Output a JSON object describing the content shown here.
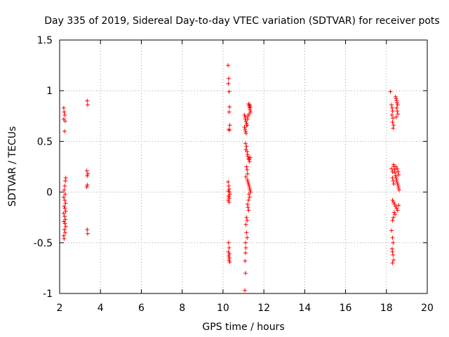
{
  "chart_data": {
    "type": "scatter",
    "title": "Day 335 of 2019, Sidereal Day-to-day VTEC variation (SDTVAR) for receiver pots",
    "xlabel": "GPS time / hours",
    "ylabel": "SDTVAR / TECUs",
    "xlim": [
      2,
      20
    ],
    "ylim": [
      -1,
      1.5
    ],
    "xticks": [
      2,
      4,
      6,
      8,
      10,
      12,
      14,
      16,
      18,
      20
    ],
    "yticks": [
      -1,
      -0.5,
      0,
      0.5,
      1,
      1.5
    ],
    "xtick_labels": [
      "2",
      "4",
      "6",
      "8",
      "10",
      "12",
      "14",
      "16",
      "18",
      "20"
    ],
    "ytick_labels": [
      "-1",
      "-0.5",
      "0",
      "0.5",
      "1",
      "1.5"
    ],
    "grid": true,
    "marker": "+",
    "color": "#ff0000",
    "series": [
      {
        "name": "SDTVAR",
        "points": [
          [
            2.2,
            0.83
          ],
          [
            2.22,
            0.79
          ],
          [
            2.25,
            0.76
          ],
          [
            2.2,
            0.72
          ],
          [
            2.27,
            0.7
          ],
          [
            2.24,
            0.6
          ],
          [
            2.3,
            0.14
          ],
          [
            2.28,
            0.11
          ],
          [
            2.25,
            0.06
          ],
          [
            2.22,
            0.02
          ],
          [
            2.27,
            -0.02
          ],
          [
            2.2,
            -0.05
          ],
          [
            2.25,
            -0.08
          ],
          [
            2.29,
            -0.11
          ],
          [
            2.22,
            -0.14
          ],
          [
            2.26,
            -0.16
          ],
          [
            2.3,
            -0.19
          ],
          [
            2.2,
            -0.21
          ],
          [
            2.24,
            -0.24
          ],
          [
            2.28,
            -0.27
          ],
          [
            2.21,
            -0.29
          ],
          [
            2.26,
            -0.31
          ],
          [
            2.3,
            -0.34
          ],
          [
            2.23,
            -0.37
          ],
          [
            2.27,
            -0.4
          ],
          [
            2.2,
            -0.43
          ],
          [
            2.22,
            -0.46
          ],
          [
            3.35,
            0.9
          ],
          [
            3.37,
            0.86
          ],
          [
            3.33,
            0.21
          ],
          [
            3.38,
            0.18
          ],
          [
            3.35,
            0.16
          ],
          [
            3.36,
            0.07
          ],
          [
            3.33,
            0.05
          ],
          [
            3.35,
            -0.37
          ],
          [
            3.37,
            -0.41
          ],
          [
            10.25,
            1.25
          ],
          [
            10.28,
            1.12
          ],
          [
            10.26,
            1.07
          ],
          [
            10.3,
            0.99
          ],
          [
            10.32,
            0.84
          ],
          [
            10.3,
            0.79
          ],
          [
            10.33,
            0.66
          ],
          [
            10.29,
            0.62
          ],
          [
            10.31,
            0.61
          ],
          [
            10.25,
            0.1
          ],
          [
            10.28,
            0.06
          ],
          [
            10.3,
            0.03
          ],
          [
            10.26,
            0.01
          ],
          [
            10.33,
            -0.02
          ],
          [
            10.27,
            -0.04
          ],
          [
            10.31,
            -0.06
          ],
          [
            10.25,
            -0.08
          ],
          [
            10.3,
            -0.1
          ],
          [
            10.28,
            -0.04
          ],
          [
            10.32,
            0.0
          ],
          [
            10.27,
            -0.5
          ],
          [
            10.3,
            -0.55
          ],
          [
            10.26,
            -0.59
          ],
          [
            10.32,
            -0.61
          ],
          [
            10.28,
            -0.63
          ],
          [
            10.31,
            -0.65
          ],
          [
            10.29,
            -0.67
          ],
          [
            10.33,
            -0.69
          ],
          [
            11.05,
            0.76
          ],
          [
            11.08,
            0.74
          ],
          [
            11.1,
            0.72
          ],
          [
            11.12,
            0.7
          ],
          [
            11.15,
            0.68
          ],
          [
            11.18,
            0.66
          ],
          [
            11.05,
            0.64
          ],
          [
            11.08,
            0.62
          ],
          [
            11.1,
            0.6
          ],
          [
            11.13,
            0.58
          ],
          [
            11.15,
            0.66
          ],
          [
            11.2,
            0.72
          ],
          [
            11.22,
            0.75
          ],
          [
            11.25,
            0.87
          ],
          [
            11.27,
            0.85
          ],
          [
            11.3,
            0.83
          ],
          [
            11.32,
            0.81
          ],
          [
            11.35,
            0.79
          ],
          [
            11.28,
            0.77
          ],
          [
            11.31,
            0.86
          ],
          [
            11.34,
            0.84
          ],
          [
            11.1,
            0.48
          ],
          [
            11.15,
            0.45
          ],
          [
            11.12,
            0.42
          ],
          [
            11.18,
            0.4
          ],
          [
            11.2,
            0.37
          ],
          [
            11.22,
            0.35
          ],
          [
            11.25,
            0.33
          ],
          [
            11.28,
            0.32
          ],
          [
            11.3,
            0.3
          ],
          [
            11.33,
            0.34
          ],
          [
            11.15,
            0.25
          ],
          [
            11.18,
            0.22
          ],
          [
            11.2,
            0.18
          ],
          [
            11.12,
            0.15
          ],
          [
            11.2,
            0.12
          ],
          [
            11.22,
            0.1
          ],
          [
            11.25,
            0.08
          ],
          [
            11.28,
            0.06
          ],
          [
            11.3,
            0.04
          ],
          [
            11.32,
            0.02
          ],
          [
            11.35,
            0.0
          ],
          [
            11.27,
            -0.02
          ],
          [
            11.3,
            -0.05
          ],
          [
            11.25,
            -0.08
          ],
          [
            11.2,
            -0.12
          ],
          [
            11.22,
            -0.15
          ],
          [
            11.25,
            -0.18
          ],
          [
            11.15,
            -0.25
          ],
          [
            11.18,
            -0.28
          ],
          [
            11.12,
            -0.32
          ],
          [
            11.15,
            -0.4
          ],
          [
            11.18,
            -0.45
          ],
          [
            11.1,
            -0.5
          ],
          [
            11.12,
            -0.55
          ],
          [
            11.1,
            -0.6
          ],
          [
            11.08,
            -0.68
          ],
          [
            11.1,
            -0.8
          ],
          [
            11.07,
            -0.97
          ],
          [
            18.2,
            0.99
          ],
          [
            18.25,
            0.86
          ],
          [
            18.28,
            0.83
          ],
          [
            18.3,
            0.8
          ],
          [
            18.27,
            0.76
          ],
          [
            18.32,
            0.73
          ],
          [
            18.3,
            0.69
          ],
          [
            18.35,
            0.66
          ],
          [
            18.33,
            0.63
          ],
          [
            18.45,
            0.94
          ],
          [
            18.48,
            0.92
          ],
          [
            18.5,
            0.9
          ],
          [
            18.52,
            0.88
          ],
          [
            18.55,
            0.86
          ],
          [
            18.5,
            0.83
          ],
          [
            18.53,
            0.8
          ],
          [
            18.56,
            0.77
          ],
          [
            18.48,
            0.74
          ],
          [
            18.25,
            0.23
          ],
          [
            18.3,
            0.2
          ],
          [
            18.35,
            0.27
          ],
          [
            18.38,
            0.25
          ],
          [
            18.4,
            0.22
          ],
          [
            18.42,
            0.19
          ],
          [
            18.45,
            0.16
          ],
          [
            18.48,
            0.14
          ],
          [
            18.5,
            0.12
          ],
          [
            18.52,
            0.1
          ],
          [
            18.55,
            0.08
          ],
          [
            18.58,
            0.06
          ],
          [
            18.6,
            0.04
          ],
          [
            18.62,
            0.02
          ],
          [
            18.47,
            0.25
          ],
          [
            18.53,
            0.23
          ],
          [
            18.57,
            0.2
          ],
          [
            18.6,
            0.17
          ],
          [
            18.3,
            0.14
          ],
          [
            18.33,
            0.11
          ],
          [
            18.36,
            0.08
          ],
          [
            18.3,
            -0.08
          ],
          [
            18.35,
            -0.1
          ],
          [
            18.4,
            -0.12
          ],
          [
            18.45,
            -0.14
          ],
          [
            18.5,
            -0.16
          ],
          [
            18.55,
            -0.18
          ],
          [
            18.6,
            -0.13
          ],
          [
            18.38,
            -0.2
          ],
          [
            18.42,
            -0.22
          ],
          [
            18.34,
            -0.25
          ],
          [
            18.3,
            -0.28
          ],
          [
            18.25,
            -0.38
          ],
          [
            18.3,
            -0.45
          ],
          [
            18.33,
            -0.5
          ],
          [
            18.28,
            -0.56
          ],
          [
            18.3,
            -0.59
          ],
          [
            18.32,
            -0.62
          ],
          [
            18.35,
            -0.67
          ],
          [
            18.3,
            -0.7
          ]
        ]
      }
    ]
  }
}
